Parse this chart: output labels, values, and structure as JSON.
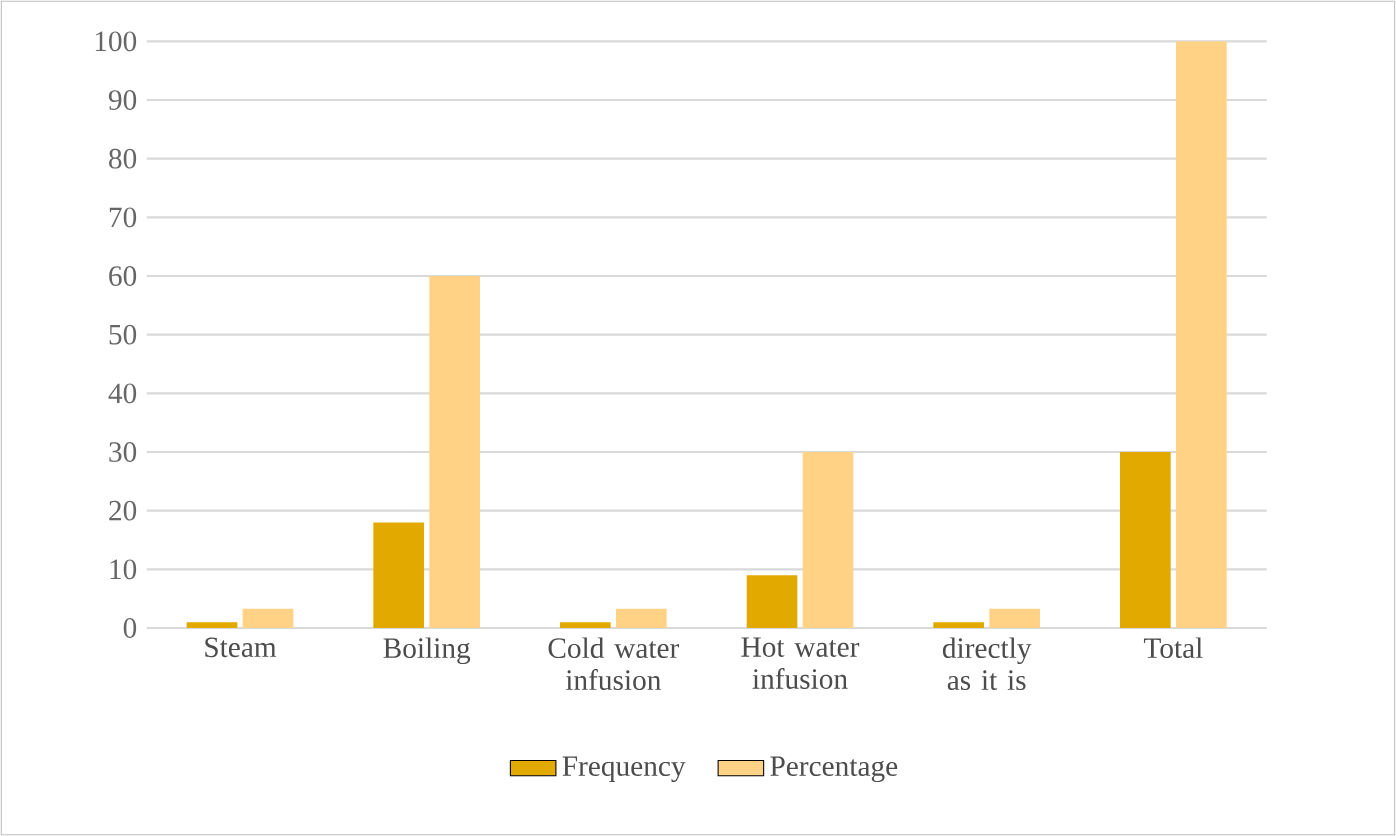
{
  "chart_data": {
    "type": "bar",
    "categories": [
      "Steam",
      "Boiling",
      "Cold water infusion",
      "Hot water infusion",
      "directly as it is",
      "Total"
    ],
    "series": [
      {
        "name": "Frequency",
        "color": "#e2aa00",
        "values": [
          1,
          18,
          1,
          9,
          1,
          30
        ]
      },
      {
        "name": "Percentage",
        "color": "#ffd285",
        "values": [
          3.3,
          60,
          3.3,
          30,
          3.3,
          100
        ]
      }
    ],
    "ylim": [
      0,
      100
    ],
    "yticks": [
      0,
      10,
      20,
      30,
      40,
      50,
      60,
      70,
      80,
      90,
      100
    ],
    "grid": "y",
    "legend": "bottom"
  }
}
